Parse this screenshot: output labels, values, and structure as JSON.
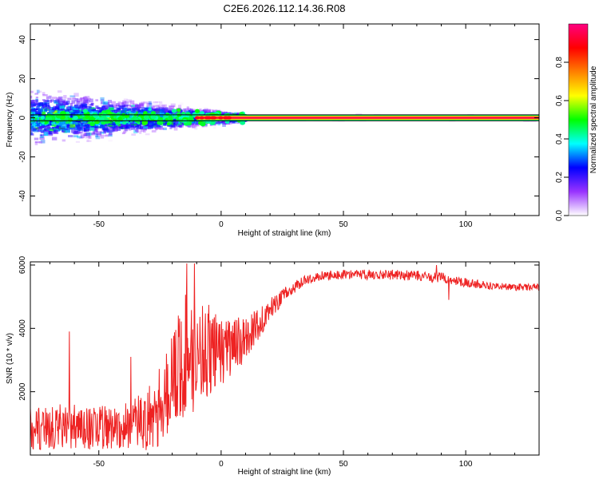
{
  "title": "C2E6.2026.112.14.36.R08",
  "chart_data": [
    {
      "type": "heatmap",
      "title": "C2E6.2026.112.14.36.R08",
      "xlabel": "Height of straight line (km)",
      "ylabel": "Frequency (Hz)",
      "xlim": [
        -78,
        130
      ],
      "ylim": [
        -50,
        48
      ],
      "x_ticks": [
        -50,
        0,
        50,
        100
      ],
      "y_ticks": [
        -40,
        -20,
        0,
        20,
        40
      ],
      "x_tick_labels": [
        "-50",
        "0",
        "50",
        "100"
      ],
      "y_tick_labels": [
        "-40",
        "-20",
        "0",
        "20",
        "40"
      ],
      "carrier_frequency_hz": 0,
      "band_limits_hz": [
        -1.5,
        1.5
      ],
      "scatter_region_x": [
        -78,
        10
      ],
      "scatter_spread_hz": [
        -18,
        18
      ],
      "stable_region_x": [
        -10,
        130
      ],
      "colorbar": {
        "label": "Normalized spectral amplitude",
        "range": [
          0,
          1
        ],
        "ticks": [
          0,
          0.2,
          0.4,
          0.6,
          0.8
        ],
        "tick_labels": [
          "0.0",
          "0.2",
          "0.4",
          "0.6",
          "0.8"
        ],
        "colors": [
          "#ffffff",
          "#9933ff",
          "#0000ff",
          "#00ffff",
          "#00ff00",
          "#ffff00",
          "#ff8000",
          "#ff0000",
          "#ff0080"
        ]
      }
    },
    {
      "type": "line",
      "xlabel": "Height of straight line (km)",
      "ylabel": "SNR (10 * v/v)",
      "xlim": [
        -78,
        130
      ],
      "ylim": [
        0,
        6100
      ],
      "x_ticks": [
        -50,
        0,
        50,
        100
      ],
      "y_ticks": [
        2000,
        4000,
        6000
      ],
      "x_tick_labels": [
        "-50",
        "0",
        "50",
        "100"
      ],
      "y_tick_labels": [
        "2000",
        "4000",
        "6000"
      ],
      "line_color": "#ee2222",
      "series": [
        {
          "x": [
            -78,
            -70,
            -60,
            -50,
            -40,
            -30,
            -25,
            -20,
            -15,
            -10,
            -5,
            0,
            5,
            10,
            15,
            20,
            25,
            30,
            35,
            40,
            50,
            60,
            70,
            80,
            90,
            100,
            110,
            120,
            130
          ],
          "values": [
            800,
            900,
            900,
            850,
            900,
            1100,
            1600,
            2300,
            3100,
            3200,
            3300,
            3300,
            3400,
            3700,
            4100,
            4600,
            5000,
            5300,
            5550,
            5650,
            5700,
            5700,
            5700,
            5650,
            5600,
            5450,
            5350,
            5300,
            5300
          ]
        }
      ],
      "noise_amplitude": [
        700,
        700,
        700,
        700,
        700,
        1000,
        1300,
        1700,
        2100,
        1800,
        1500,
        1100,
        900,
        700,
        500,
        350,
        250,
        180,
        150,
        150,
        150,
        160,
        170,
        170,
        170,
        140,
        120,
        110,
        110
      ],
      "spikes": [
        {
          "x": -62,
          "value": 3900
        },
        {
          "x": -37,
          "value": 3100
        },
        {
          "x": -14,
          "value": 6050
        },
        {
          "x": -11,
          "value": 6050
        },
        {
          "x": 88,
          "value": 6000
        },
        {
          "x": 93,
          "value": 4900
        }
      ]
    }
  ]
}
